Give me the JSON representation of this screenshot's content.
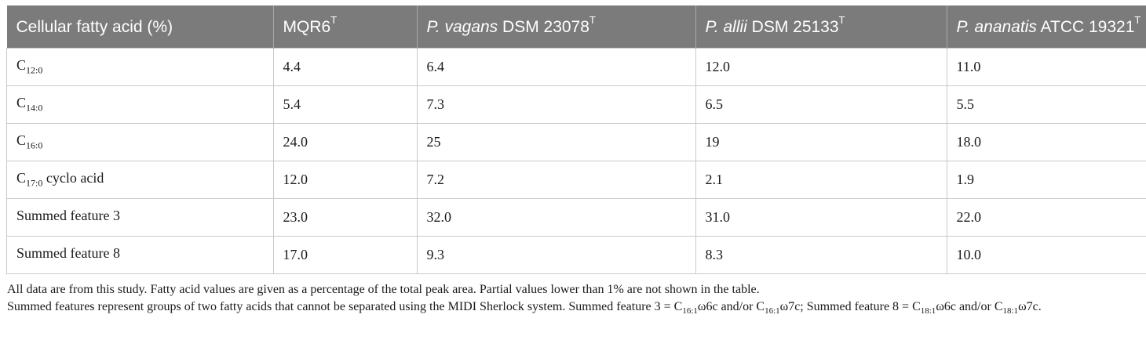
{
  "table": {
    "headers": [
      {
        "plain": "Cellular fatty acid (%)",
        "italic": "",
        "suffix": "",
        "sup": ""
      },
      {
        "plain": "MQR6",
        "italic": "",
        "suffix": "",
        "sup": "T"
      },
      {
        "plain": "",
        "italic": "P. vagans",
        "suffix": " DSM 23078",
        "sup": "T"
      },
      {
        "plain": "",
        "italic": "P. allii",
        "suffix": " DSM 25133",
        "sup": "T"
      },
      {
        "plain": "",
        "italic": "P. ananatis",
        "suffix": " ATCC 19321",
        "sup": "T"
      }
    ],
    "rows": [
      {
        "label": {
          "pre": "C",
          "sub": "12:0",
          "post": ""
        },
        "values": [
          "4.4",
          "6.4",
          "12.0",
          "11.0"
        ]
      },
      {
        "label": {
          "pre": "C",
          "sub": "14:0",
          "post": ""
        },
        "values": [
          "5.4",
          "7.3",
          "6.5",
          "5.5"
        ]
      },
      {
        "label": {
          "pre": "C",
          "sub": "16:0",
          "post": ""
        },
        "values": [
          "24.0",
          "25",
          "19",
          "18.0"
        ]
      },
      {
        "label": {
          "pre": "C",
          "sub": "17:0",
          "post": " cyclo acid"
        },
        "values": [
          "12.0",
          "7.2",
          "2.1",
          "1.9"
        ]
      },
      {
        "label": {
          "pre": "Summed feature 3",
          "sub": "",
          "post": ""
        },
        "values": [
          "23.0",
          "32.0",
          "31.0",
          "22.0"
        ]
      },
      {
        "label": {
          "pre": "Summed feature 8",
          "sub": "",
          "post": ""
        },
        "values": [
          "17.0",
          "9.3",
          "8.3",
          "10.0"
        ]
      }
    ]
  },
  "footnote": {
    "line1": "All data are from this study. Fatty acid values are given as a percentage of the total peak area. Partial values lower than 1% are not shown in the table.",
    "line2": [
      {
        "t": "Summed features represent groups of two fatty acids that cannot be separated using the MIDI Sherlock system. Summed feature 3 = C"
      },
      {
        "sub": "16:1"
      },
      {
        "t": "ω6c and/or C"
      },
      {
        "sub": "16:1"
      },
      {
        "t": "ω7c; Summed feature 8 = C"
      },
      {
        "sub": "18:1"
      },
      {
        "t": "ω6c and/or C"
      },
      {
        "sub": "18:1"
      },
      {
        "t": "ω7c."
      }
    ]
  }
}
